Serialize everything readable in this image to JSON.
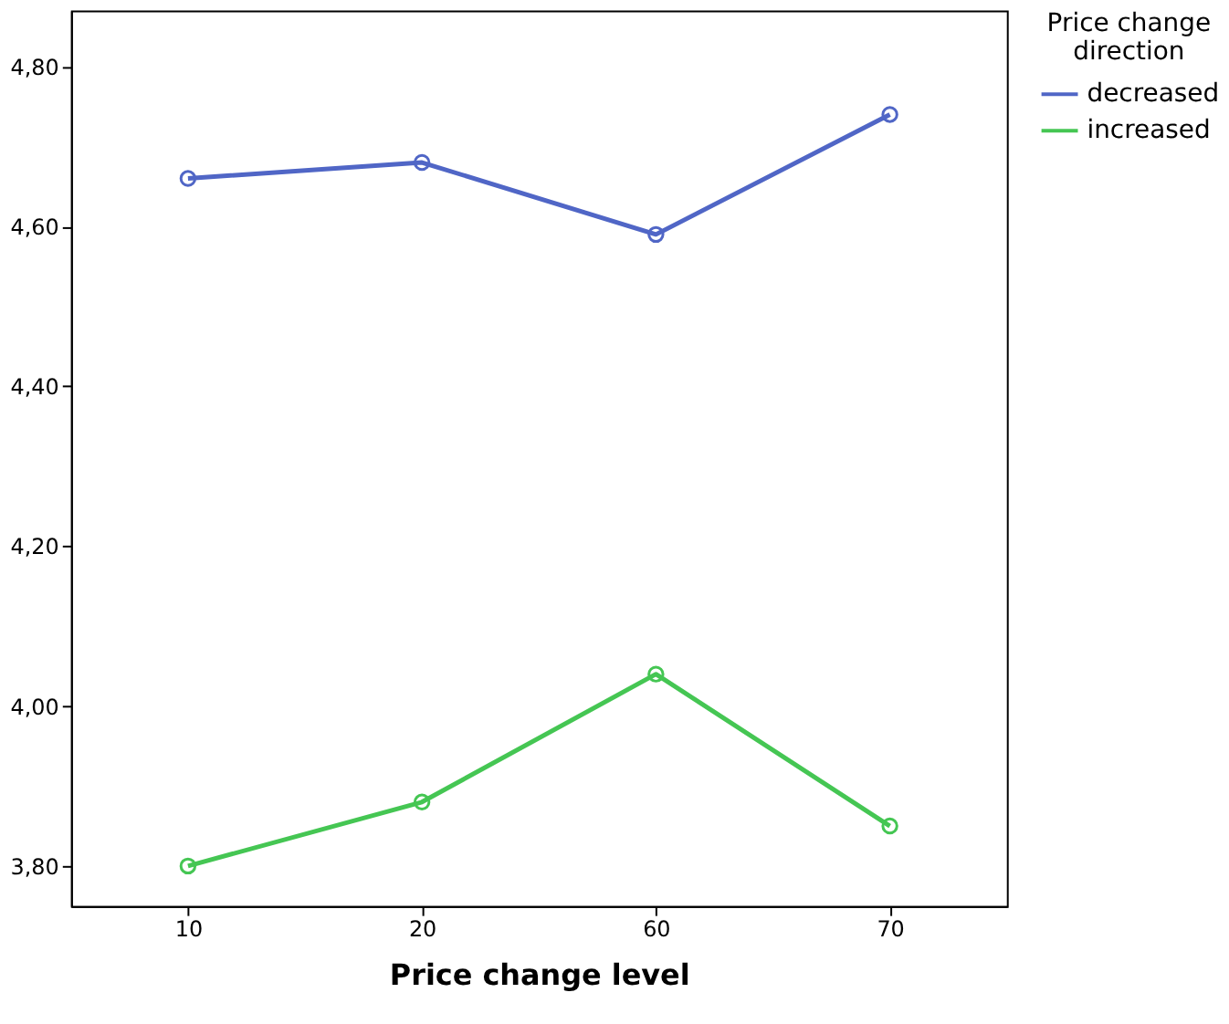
{
  "chart_data": {
    "type": "line",
    "xlabel": "Price change level",
    "legend_title": "Price change direction",
    "categories": [
      "10",
      "20",
      "60",
      "70"
    ],
    "series": [
      {
        "name": "decreased",
        "color": "#5066c6",
        "values": [
          4.66,
          4.68,
          4.59,
          4.74
        ]
      },
      {
        "name": "increased",
        "color": "#45c653",
        "values": [
          3.8,
          3.88,
          4.04,
          3.85
        ]
      }
    ],
    "ylim": [
      3.75,
      4.87
    ],
    "yticks": [
      {
        "value": 3.8,
        "label": "3,80"
      },
      {
        "value": 4.0,
        "label": "4,00"
      },
      {
        "value": 4.2,
        "label": "4,20"
      },
      {
        "value": 4.4,
        "label": "4,40"
      },
      {
        "value": 4.6,
        "label": "4,60"
      },
      {
        "value": 4.8,
        "label": "4,80"
      }
    ],
    "grid": false,
    "legend": "top right",
    "marker": "circle",
    "line_style": "solid"
  }
}
